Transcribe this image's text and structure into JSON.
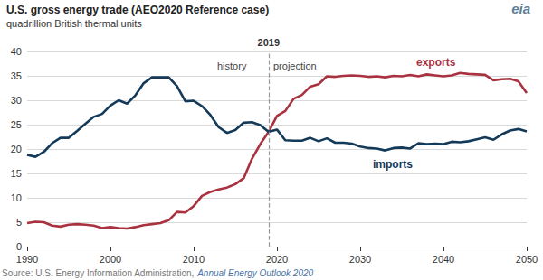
{
  "chart_data": {
    "type": "line",
    "title": "U.S. gross energy trade (AEO2020 Reference case)",
    "subtitle": "quadrillion British thermal units",
    "source": "Source: U.S. Energy Information Administration,",
    "source_publication": "Annual Energy Outlook 2020",
    "logo": "eia",
    "annotations": [
      {
        "x": 2019,
        "label": "2019",
        "left_text": "history",
        "right_text": "projection"
      }
    ],
    "x": [
      1990,
      1991,
      1992,
      1993,
      1994,
      1995,
      1996,
      1997,
      1998,
      1999,
      2000,
      2001,
      2002,
      2003,
      2004,
      2005,
      2006,
      2007,
      2008,
      2009,
      2010,
      2011,
      2012,
      2013,
      2014,
      2015,
      2016,
      2017,
      2018,
      2019,
      2020,
      2021,
      2022,
      2023,
      2024,
      2025,
      2026,
      2027,
      2028,
      2029,
      2030,
      2031,
      2032,
      2033,
      2034,
      2035,
      2036,
      2037,
      2038,
      2039,
      2040,
      2041,
      2042,
      2043,
      2044,
      2045,
      2046,
      2047,
      2048,
      2049,
      2050
    ],
    "series": [
      {
        "name": "exports",
        "color": "#a8323f",
        "values": [
          4.8,
          5.1,
          5.0,
          4.3,
          4.1,
          4.5,
          4.6,
          4.5,
          4.3,
          3.8,
          4.0,
          3.8,
          3.7,
          4.0,
          4.4,
          4.6,
          4.8,
          5.4,
          7.1,
          7.0,
          8.3,
          10.4,
          11.2,
          11.7,
          12.1,
          12.8,
          14.0,
          18.0,
          21.0,
          23.5,
          26.8,
          27.8,
          30.3,
          31.1,
          32.8,
          33.3,
          34.9,
          34.8,
          35.0,
          35.1,
          35.0,
          34.8,
          34.9,
          34.7,
          35.0,
          34.9,
          35.2,
          34.9,
          35.3,
          35.1,
          34.9,
          35.1,
          35.6,
          35.4,
          35.3,
          35.2,
          34.1,
          34.3,
          34.4,
          33.9,
          31.5
        ]
      },
      {
        "name": "imports",
        "color": "#143a5a",
        "values": [
          18.8,
          18.4,
          19.4,
          21.2,
          22.3,
          22.3,
          23.7,
          25.2,
          26.6,
          27.2,
          28.9,
          30.0,
          29.3,
          31.0,
          33.5,
          34.7,
          34.7,
          34.7,
          32.9,
          29.8,
          29.9,
          28.8,
          27.0,
          24.5,
          23.3,
          23.9,
          25.4,
          25.5,
          24.9,
          23.5,
          24.0,
          21.8,
          21.7,
          21.7,
          22.3,
          21.6,
          22.2,
          21.3,
          21.3,
          21.1,
          20.5,
          20.2,
          20.1,
          19.7,
          20.2,
          20.3,
          20.1,
          21.2,
          21.0,
          21.1,
          21.0,
          21.5,
          21.4,
          21.6,
          22.0,
          22.4,
          21.9,
          23.0,
          23.8,
          24.1,
          23.6
        ]
      }
    ],
    "xlim": [
      1990,
      2050
    ],
    "xticks": [
      1990,
      2000,
      2010,
      2020,
      2030,
      2040,
      2050
    ],
    "ylim": [
      0,
      40
    ],
    "yticks": [
      0,
      5,
      10,
      15,
      20,
      25,
      30,
      35,
      40
    ],
    "grid": true
  }
}
